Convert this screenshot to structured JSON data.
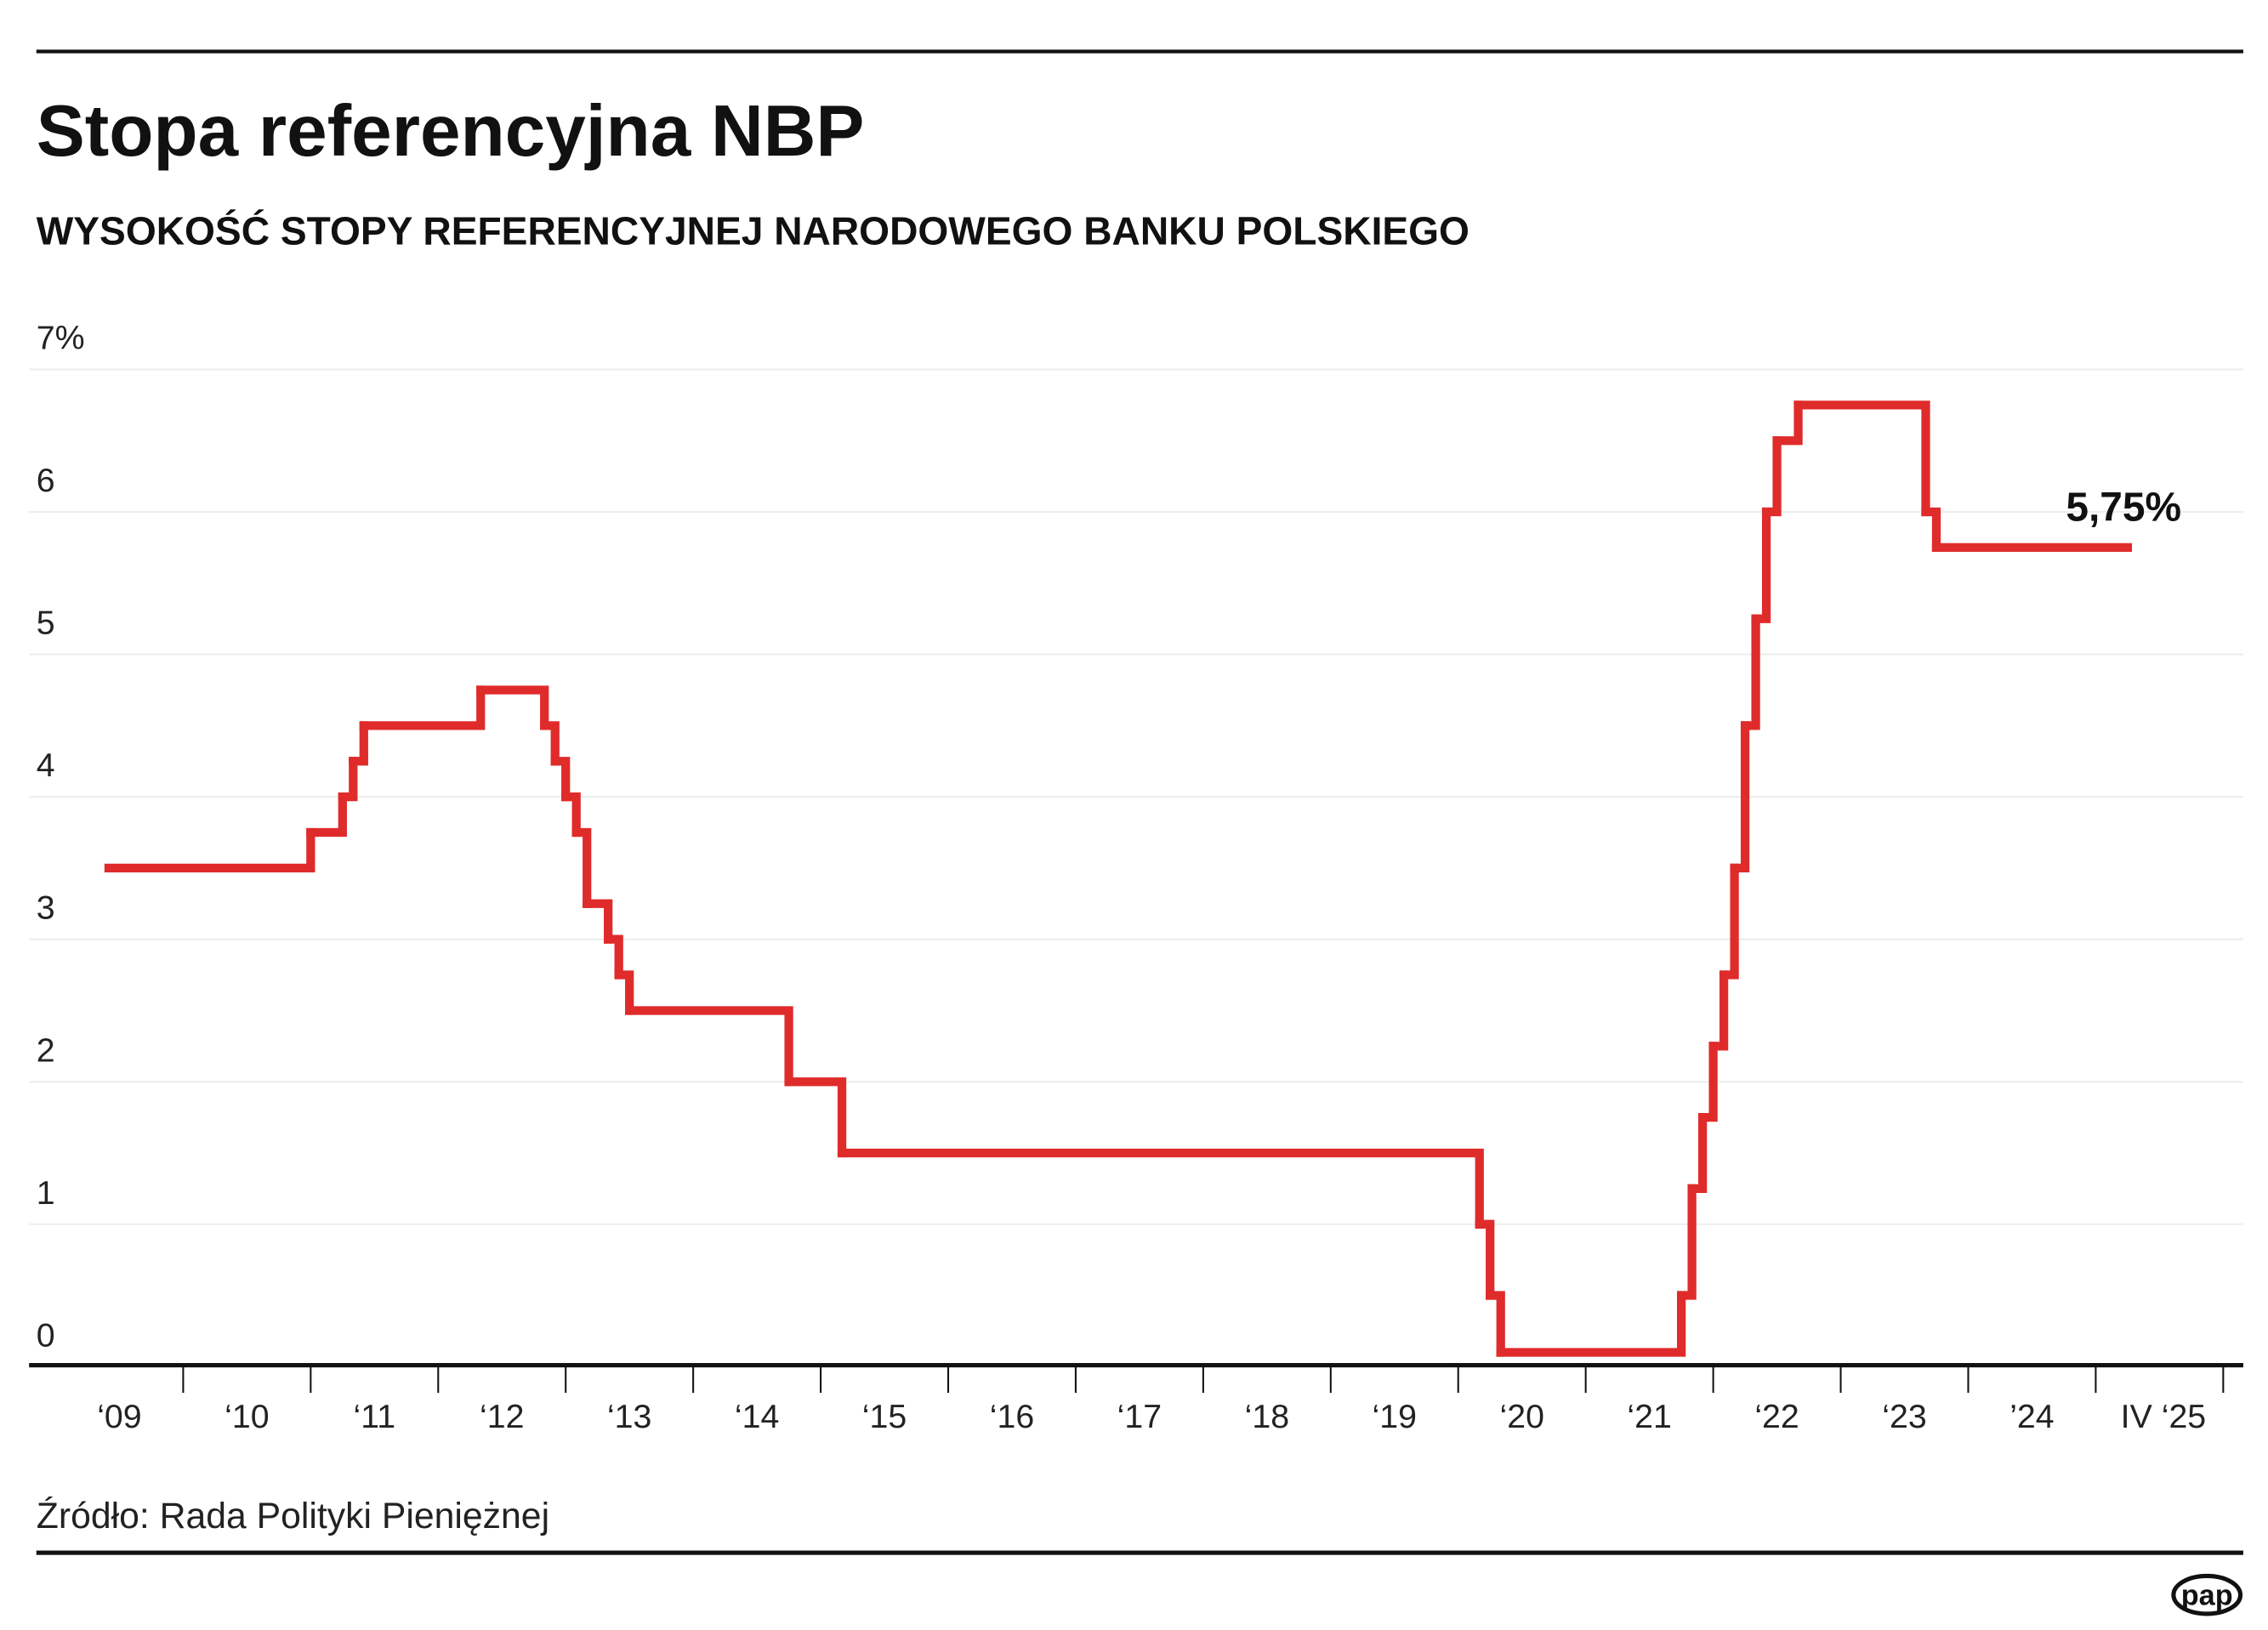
{
  "chart_data": {
    "type": "line",
    "step": true,
    "title": "Stopa referencyjna NBP",
    "subtitle": "WYSOKOŚĆ STOPY REFERENCYJNEJ NARODOWEGO BANKU POLSKIEGO",
    "xlabel": "",
    "ylabel": "",
    "ylim": [
      0,
      7
    ],
    "y_ticks": [
      "0",
      "1",
      "2",
      "3",
      "4",
      "5",
      "6",
      "7%"
    ],
    "x_ticks": [
      "‘09",
      "‘10",
      "‘11",
      "‘12",
      "‘13",
      "‘14",
      "‘15",
      "‘16",
      "‘17",
      "‘18",
      "‘19",
      "‘20",
      "‘21",
      "‘22",
      "‘23",
      "’24",
      "IV ‘25"
    ],
    "grid": true,
    "color": "#e02b2b",
    "end_label": "5,75%",
    "end_date": "2025-04",
    "series": [
      {
        "name": "Stopa referencyjna",
        "points": [
          [
            "2009-06",
            3.5
          ],
          [
            "2011-01",
            3.75
          ],
          [
            "2011-04",
            4.0
          ],
          [
            "2011-05",
            4.25
          ],
          [
            "2011-06",
            4.5
          ],
          [
            "2012-05",
            4.75
          ],
          [
            "2012-11",
            4.5
          ],
          [
            "2012-12",
            4.25
          ],
          [
            "2013-01",
            4.0
          ],
          [
            "2013-02",
            3.75
          ],
          [
            "2013-03",
            3.25
          ],
          [
            "2013-05",
            3.0
          ],
          [
            "2013-06",
            2.75
          ],
          [
            "2013-07",
            2.5
          ],
          [
            "2014-10",
            2.0
          ],
          [
            "2015-03",
            1.5
          ],
          [
            "2020-03",
            1.0
          ],
          [
            "2020-04",
            0.5
          ],
          [
            "2020-05",
            0.1
          ],
          [
            "2021-10",
            0.5
          ],
          [
            "2021-11",
            1.25
          ],
          [
            "2021-12",
            1.75
          ],
          [
            "2022-01",
            2.25
          ],
          [
            "2022-02",
            2.75
          ],
          [
            "2022-03",
            3.5
          ],
          [
            "2022-04",
            4.5
          ],
          [
            "2022-05",
            5.25
          ],
          [
            "2022-06",
            6.0
          ],
          [
            "2022-07",
            6.5
          ],
          [
            "2022-09",
            6.75
          ],
          [
            "2023-09",
            6.0
          ],
          [
            "2023-10",
            5.75
          ]
        ]
      }
    ]
  },
  "source": "Źródło: Rada Polityki Pieniężnej",
  "logo": "pap"
}
